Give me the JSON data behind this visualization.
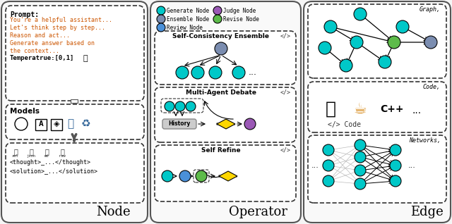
{
  "bg_color": "#f0f0f0",
  "panel_bg": "#ffffff",
  "teal": "#00C8C8",
  "purple": "#9B59B6",
  "slate_blue": "#7B8DB0",
  "green": "#5DBB4A",
  "blue": "#4A90D9",
  "dark_orange": "#CC5500",
  "gold": "#FFD700",
  "title_node": "Node",
  "title_operator": "Operator",
  "title_edge": "Edge",
  "prompt_label": "Prompt:",
  "prompt_lines": [
    "You're a helpful assistant...",
    "Let's think step by step...",
    "Reason and act...",
    "Generate answer based on",
    "the context..."
  ],
  "temp_label": "Temperatrue:[0,1]",
  "models_label": "Models",
  "output_lines": [
    "<thought>_...</thought>",
    "<solution>_...</solution>"
  ],
  "legend_items": [
    {
      "label": "Generate Node",
      "color": "#00C8C8"
    },
    {
      "label": "Judge Node",
      "color": "#9B59B6"
    },
    {
      "label": "Ensemble Node",
      "color": "#7B8DB0"
    },
    {
      "label": "Revise Node",
      "color": "#5DBB4A"
    },
    {
      "label": "Review Node",
      "color": "#4A90D9"
    }
  ],
  "op1_title": "Self-Consistency Ensemble",
  "op2_title": "Multi-Agent Debate",
  "op3_title": "Self Refine",
  "edge_labels": [
    "Graph,",
    "Code,",
    "Networks,"
  ]
}
